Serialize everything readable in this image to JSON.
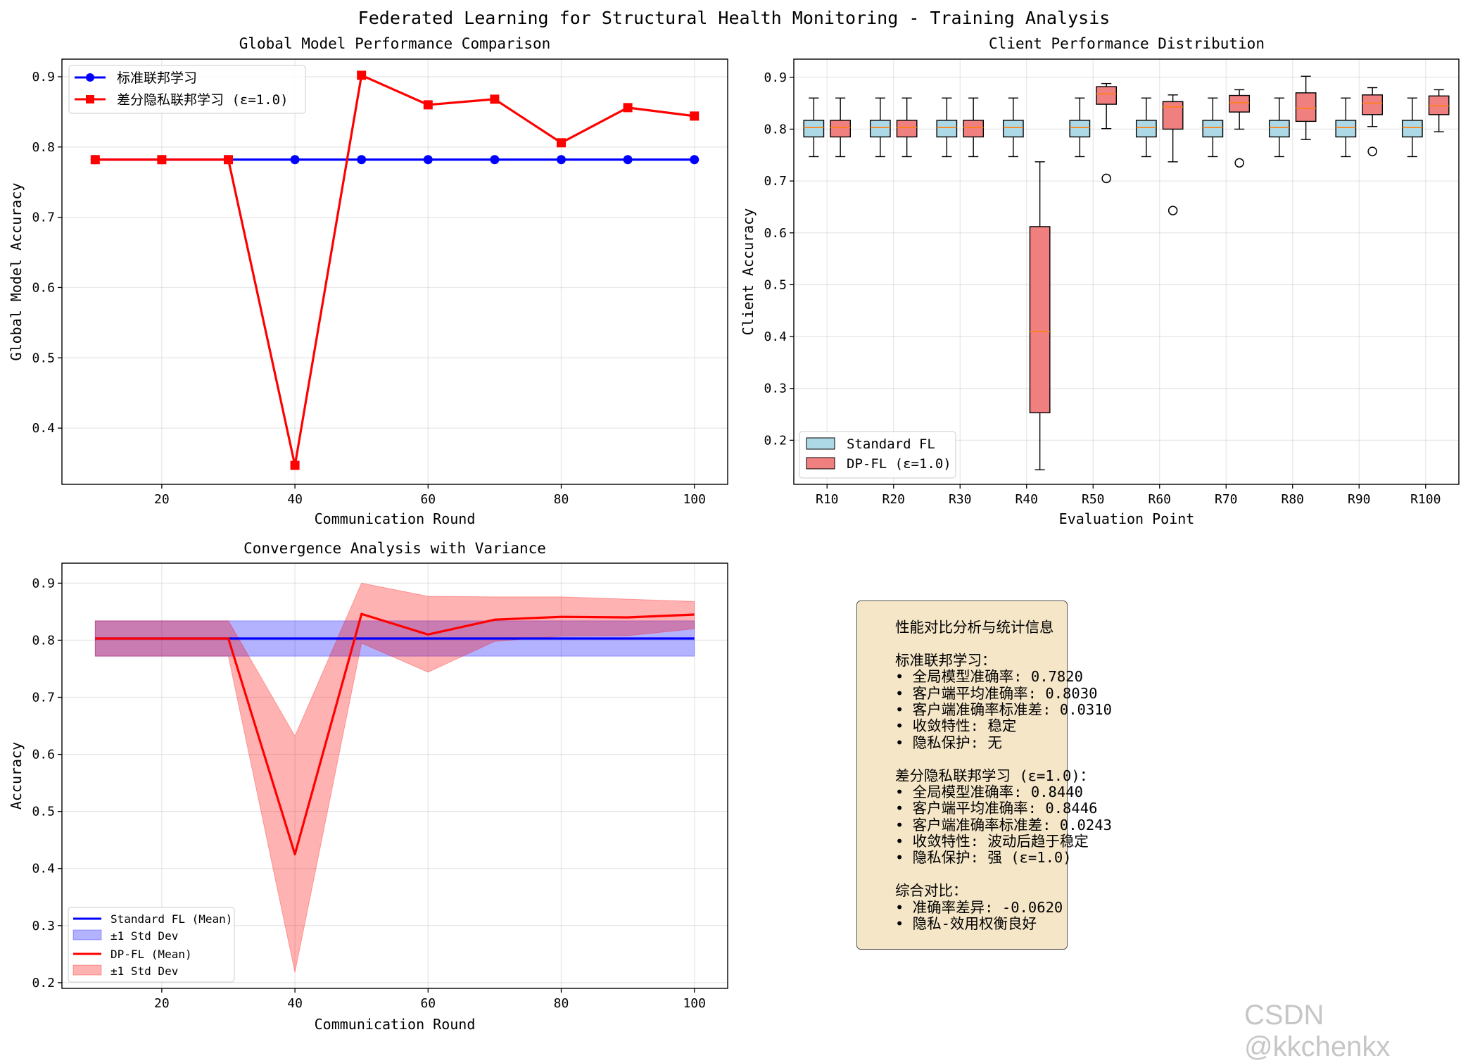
{
  "figure": {
    "suptitle": "Federated Learning for Structural Health Monitoring - Training Analysis",
    "watermark": "CSDN @kkchenkx",
    "colors": {
      "standard": "#0000ff",
      "dp": "#ff0000",
      "box_standard": "#add8e6",
      "box_dp": "#f08080",
      "median": "#ff7f0e",
      "panel_bg": "#f5e6c8"
    }
  },
  "chart_data": [
    {
      "type": "line",
      "title": "Global Model Performance Comparison",
      "xlabel": "Communication Round",
      "ylabel": "Global Model Accuracy",
      "xlim": [
        5,
        105
      ],
      "ylim": [
        0.32,
        0.925
      ],
      "xticks": [
        20,
        40,
        60,
        80,
        100
      ],
      "yticks": [
        0.4,
        0.5,
        0.6,
        0.7,
        0.8,
        0.9
      ],
      "grid": true,
      "legend": "top-left",
      "x": [
        10,
        20,
        30,
        40,
        50,
        60,
        70,
        80,
        90,
        100
      ],
      "series": [
        {
          "name": "标准联邦学习",
          "color": "#0000ff",
          "marker": "circle",
          "values": [
            0.782,
            0.782,
            0.782,
            0.782,
            0.782,
            0.782,
            0.782,
            0.782,
            0.782,
            0.782
          ]
        },
        {
          "name": "差分隐私联邦学习 (ε=1.0)",
          "color": "#ff0000",
          "marker": "square",
          "values": [
            0.782,
            0.782,
            0.782,
            0.347,
            0.902,
            0.86,
            0.868,
            0.806,
            0.856,
            0.844
          ]
        }
      ]
    },
    {
      "type": "box",
      "title": "Client Performance Distribution",
      "xlabel": "Evaluation Point",
      "ylabel": "Client Accuracy",
      "ylim": [
        0.115,
        0.935
      ],
      "yticks": [
        0.2,
        0.3,
        0.4,
        0.5,
        0.6,
        0.7,
        0.8,
        0.9
      ],
      "grid": true,
      "legend": "bottom-left",
      "categories": [
        "R10",
        "R20",
        "R30",
        "R40",
        "R50",
        "R60",
        "R70",
        "R80",
        "R90",
        "R100"
      ],
      "series": [
        {
          "name": "Standard FL",
          "color": "#add8e6",
          "boxes": [
            {
              "whislo": 0.747,
              "q1": 0.785,
              "med": 0.803,
              "q3": 0.817,
              "whishi": 0.86,
              "fliers": []
            },
            {
              "whislo": 0.747,
              "q1": 0.785,
              "med": 0.803,
              "q3": 0.817,
              "whishi": 0.86,
              "fliers": []
            },
            {
              "whislo": 0.747,
              "q1": 0.785,
              "med": 0.803,
              "q3": 0.817,
              "whishi": 0.86,
              "fliers": []
            },
            {
              "whislo": 0.747,
              "q1": 0.785,
              "med": 0.803,
              "q3": 0.817,
              "whishi": 0.86,
              "fliers": []
            },
            {
              "whislo": 0.747,
              "q1": 0.785,
              "med": 0.803,
              "q3": 0.817,
              "whishi": 0.86,
              "fliers": []
            },
            {
              "whislo": 0.747,
              "q1": 0.785,
              "med": 0.803,
              "q3": 0.817,
              "whishi": 0.86,
              "fliers": []
            },
            {
              "whislo": 0.747,
              "q1": 0.785,
              "med": 0.803,
              "q3": 0.817,
              "whishi": 0.86,
              "fliers": []
            },
            {
              "whislo": 0.747,
              "q1": 0.785,
              "med": 0.803,
              "q3": 0.817,
              "whishi": 0.86,
              "fliers": []
            },
            {
              "whislo": 0.747,
              "q1": 0.785,
              "med": 0.803,
              "q3": 0.817,
              "whishi": 0.86,
              "fliers": []
            },
            {
              "whislo": 0.747,
              "q1": 0.785,
              "med": 0.803,
              "q3": 0.817,
              "whishi": 0.86,
              "fliers": []
            }
          ]
        },
        {
          "name": "DP-FL (ε=1.0)",
          "color": "#f08080",
          "boxes": [
            {
              "whislo": 0.747,
              "q1": 0.785,
              "med": 0.803,
              "q3": 0.817,
              "whishi": 0.86,
              "fliers": []
            },
            {
              "whislo": 0.747,
              "q1": 0.785,
              "med": 0.803,
              "q3": 0.817,
              "whishi": 0.86,
              "fliers": []
            },
            {
              "whislo": 0.747,
              "q1": 0.785,
              "med": 0.803,
              "q3": 0.817,
              "whishi": 0.86,
              "fliers": []
            },
            {
              "whislo": 0.143,
              "q1": 0.253,
              "med": 0.41,
              "q3": 0.612,
              "whishi": 0.737,
              "fliers": []
            },
            {
              "whislo": 0.801,
              "q1": 0.848,
              "med": 0.868,
              "q3": 0.882,
              "whishi": 0.888,
              "fliers": [
                0.705
              ]
            },
            {
              "whislo": 0.737,
              "q1": 0.8,
              "med": 0.843,
              "q3": 0.853,
              "whishi": 0.866,
              "fliers": [
                0.643
              ]
            },
            {
              "whislo": 0.8,
              "q1": 0.833,
              "med": 0.851,
              "q3": 0.865,
              "whishi": 0.876,
              "fliers": [
                0.735
              ]
            },
            {
              "whislo": 0.78,
              "q1": 0.815,
              "med": 0.84,
              "q3": 0.87,
              "whishi": 0.902,
              "fliers": []
            },
            {
              "whislo": 0.805,
              "q1": 0.828,
              "med": 0.85,
              "q3": 0.866,
              "whishi": 0.88,
              "fliers": [
                0.757
              ]
            },
            {
              "whislo": 0.795,
              "q1": 0.828,
              "med": 0.845,
              "q3": 0.864,
              "whishi": 0.876,
              "fliers": []
            }
          ]
        }
      ]
    },
    {
      "type": "area",
      "title": "Convergence Analysis with Variance",
      "xlabel": "Communication Round",
      "ylabel": "Accuracy",
      "xlim": [
        5,
        105
      ],
      "ylim": [
        0.19,
        0.935
      ],
      "xticks": [
        20,
        40,
        60,
        80,
        100
      ],
      "yticks": [
        0.2,
        0.3,
        0.4,
        0.5,
        0.6,
        0.7,
        0.8,
        0.9
      ],
      "grid": true,
      "legend": "bottom-left",
      "x": [
        10,
        20,
        30,
        40,
        50,
        60,
        70,
        80,
        90,
        100
      ],
      "series": [
        {
          "name": "Standard FL (Mean)",
          "band_name": "±1 Std Dev",
          "color": "#0000ff",
          "values": [
            0.803,
            0.803,
            0.803,
            0.803,
            0.803,
            0.803,
            0.803,
            0.803,
            0.803,
            0.803
          ],
          "lower": [
            0.772,
            0.772,
            0.772,
            0.772,
            0.772,
            0.772,
            0.772,
            0.772,
            0.772,
            0.772
          ],
          "upper": [
            0.834,
            0.834,
            0.834,
            0.834,
            0.834,
            0.834,
            0.834,
            0.834,
            0.834,
            0.834
          ]
        },
        {
          "name": "DP-FL (Mean)",
          "band_name": "±1 Std Dev",
          "color": "#ff0000",
          "values": [
            0.803,
            0.803,
            0.803,
            0.425,
            0.846,
            0.81,
            0.836,
            0.841,
            0.84,
            0.845
          ],
          "lower": [
            0.772,
            0.772,
            0.772,
            0.218,
            0.795,
            0.744,
            0.798,
            0.807,
            0.808,
            0.82
          ],
          "upper": [
            0.834,
            0.834,
            0.834,
            0.632,
            0.9,
            0.877,
            0.876,
            0.876,
            0.872,
            0.868
          ]
        }
      ]
    }
  ],
  "stats_panel": {
    "lines": [
      "性能对比分析与统计信息",
      "",
      "标准联邦学习：",
      "• 全局模型准确率: 0.7820",
      "• 客户端平均准确率: 0.8030",
      "• 客户端准确率标准差: 0.0310",
      "• 收敛特性: 稳定",
      "• 隐私保护: 无",
      "",
      "差分隐私联邦学习 (ε=1.0)：",
      "• 全局模型准确率: 0.8440",
      "• 客户端平均准确率: 0.8446",
      "• 客户端准确率标准差: 0.0243",
      "• 收敛特性: 波动后趋于稳定",
      "• 隐私保护: 强 (ε=1.0)",
      "",
      "综合对比：",
      "• 准确率差异: -0.0620",
      "• 隐私-效用权衡良好"
    ]
  }
}
